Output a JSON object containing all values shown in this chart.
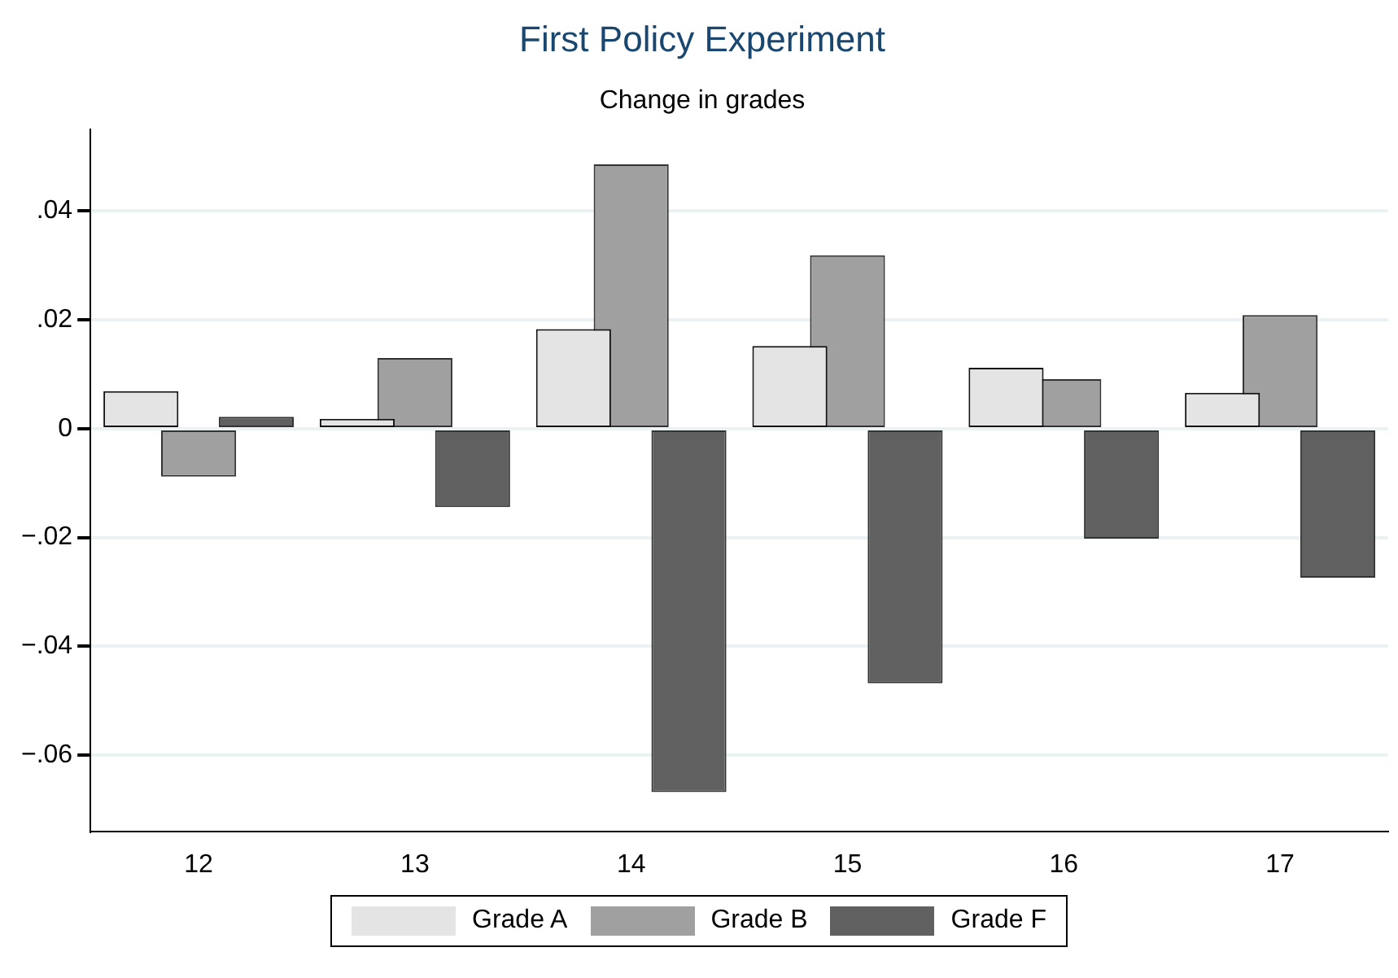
{
  "chart_data": {
    "type": "bar",
    "title": "First Policy Experiment",
    "subtitle": "Change in grades",
    "categories": [
      "12",
      "13",
      "14",
      "15",
      "16",
      "17"
    ],
    "series": [
      {
        "name": "Grade A",
        "color": "#e4e4e4",
        "values": [
          0.0069,
          0.0018,
          0.0183,
          0.0152,
          0.0112,
          0.0066
        ]
      },
      {
        "name": "Grade B",
        "color": "#a0a0a0",
        "values": [
          -0.0088,
          0.013,
          0.0486,
          0.0319,
          0.0091,
          0.0209
        ]
      },
      {
        "name": "Grade F",
        "color": "#606060",
        "values": [
          0.0022,
          -0.0144,
          -0.0668,
          -0.0468,
          -0.0202,
          -0.0274
        ]
      }
    ],
    "ylim": [
      -0.074,
      0.055
    ],
    "yticks": [
      {
        "value": -0.06,
        "label": "−.06"
      },
      {
        "value": -0.04,
        "label": "−.04"
      },
      {
        "value": -0.02,
        "label": "−.02"
      },
      0,
      {
        "value": 0.02,
        "label": ".02"
      },
      {
        "value": 0.04,
        "label": ".04"
      }
    ],
    "grid": "y",
    "legend": "bottom"
  }
}
